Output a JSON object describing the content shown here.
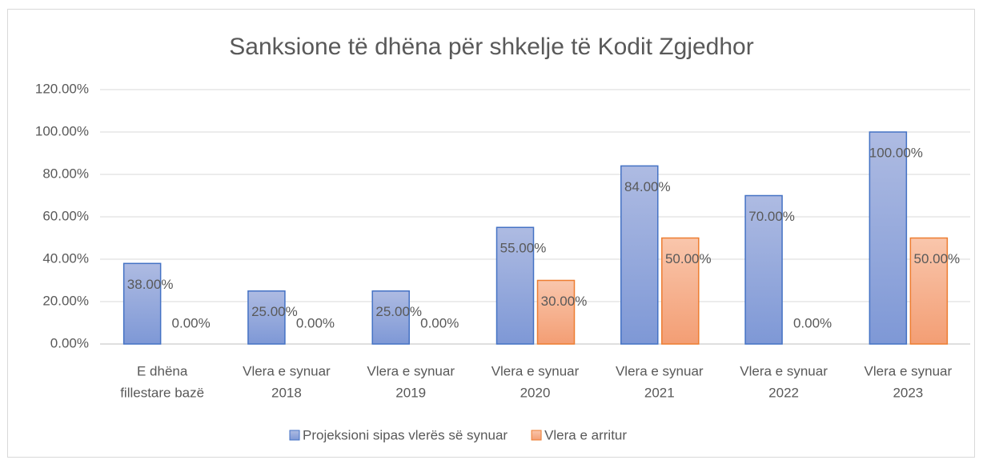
{
  "chart_data": {
    "type": "bar",
    "title": "Sanksione të dhëna për shkelje të Kodit Zgjedhor",
    "categories": [
      [
        "E dhëna",
        "fillestare bazë"
      ],
      [
        "Vlera e synuar",
        "2018"
      ],
      [
        "Vlera e synuar",
        "2019"
      ],
      [
        "Vlera e synuar",
        "2020"
      ],
      [
        "Vlera e synuar",
        "2021"
      ],
      [
        "Vlera e synuar",
        "2022"
      ],
      [
        "Vlera e synuar",
        "2023"
      ]
    ],
    "series": [
      {
        "name": "Projeksioni sipas vlerës së synuar",
        "color": "#4472c4",
        "values": [
          38,
          25,
          25,
          55,
          84,
          70,
          100
        ],
        "value_labels": [
          "38.00%",
          "25.00%",
          "25.00%",
          "55.00%",
          "84.00%",
          "70.00%",
          "100.00%"
        ]
      },
      {
        "name": "Vlera e arritur",
        "color": "#ed7d31",
        "values": [
          0,
          0,
          0,
          30,
          50,
          0,
          50
        ],
        "value_labels": [
          "0.00%",
          "0.00%",
          "0.00%",
          "30.00%",
          "50.00%",
          "0.00%",
          "50.00%"
        ]
      }
    ],
    "ylim": [
      0,
      120
    ],
    "yticks": [
      {
        "value": 0,
        "label": "0.00%"
      },
      {
        "value": 20,
        "label": "20.00%"
      },
      {
        "value": 40,
        "label": "40.00%"
      },
      {
        "value": 60,
        "label": "60.00%"
      },
      {
        "value": 80,
        "label": "80.00%"
      },
      {
        "value": 100,
        "label": "100.00%"
      },
      {
        "value": 120,
        "label": "120.00%"
      }
    ],
    "grid": true,
    "legend": "bottom"
  }
}
